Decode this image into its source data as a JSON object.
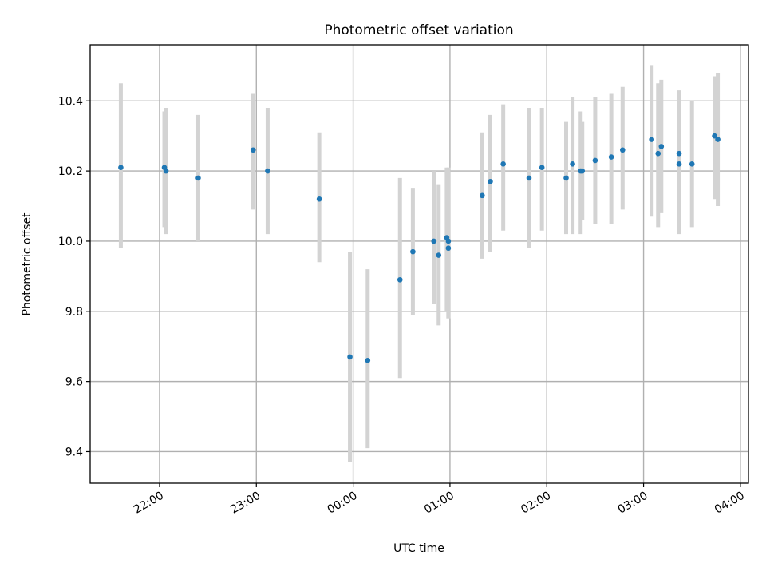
{
  "chart_data": {
    "type": "scatter",
    "title": "Photometric offset variation",
    "xlabel": "UTC time",
    "ylabel": "Photometric offset",
    "x_unit": "hours UTC (values past 24 are the following day)",
    "xlim": [
      "21:17",
      "04:05"
    ],
    "ylim": [
      9.31,
      10.56
    ],
    "x_ticks": [
      {
        "value": "22:00",
        "label": "22:00"
      },
      {
        "value": "23:00",
        "label": "23:00"
      },
      {
        "value": "00:00",
        "label": "00:00"
      },
      {
        "value": "01:00",
        "label": "01:00"
      },
      {
        "value": "02:00",
        "label": "02:00"
      },
      {
        "value": "03:00",
        "label": "03:00"
      },
      {
        "value": "04:00",
        "label": "04:00"
      }
    ],
    "y_ticks": [
      {
        "value": 9.4,
        "label": "9.4"
      },
      {
        "value": 9.6,
        "label": "9.6"
      },
      {
        "value": 9.8,
        "label": "9.8"
      },
      {
        "value": 10.0,
        "label": "10.0"
      },
      {
        "value": 10.2,
        "label": "10.2"
      },
      {
        "value": 10.4,
        "label": "10.4"
      }
    ],
    "grid": true,
    "marker_color": "#1f77b4",
    "errorbar_color": "#d3d3d3",
    "points": [
      {
        "t": "21:36",
        "y": 10.21,
        "lo": 9.98,
        "hi": 10.45
      },
      {
        "t": "22:03",
        "y": 10.21,
        "lo": 10.04,
        "hi": 10.37
      },
      {
        "t": "22:04",
        "y": 10.2,
        "lo": 10.02,
        "hi": 10.38
      },
      {
        "t": "22:24",
        "y": 10.18,
        "lo": 10.0,
        "hi": 10.36
      },
      {
        "t": "22:58",
        "y": 10.26,
        "lo": 10.09,
        "hi": 10.42
      },
      {
        "t": "23:07",
        "y": 10.2,
        "lo": 10.02,
        "hi": 10.38
      },
      {
        "t": "23:39",
        "y": 10.12,
        "lo": 9.94,
        "hi": 10.31
      },
      {
        "t": "23:58",
        "y": 9.67,
        "lo": 9.37,
        "hi": 9.97
      },
      {
        "t": "00:09",
        "y": 9.66,
        "lo": 9.41,
        "hi": 9.92
      },
      {
        "t": "00:29",
        "y": 9.89,
        "lo": 9.61,
        "hi": 10.18
      },
      {
        "t": "00:37",
        "y": 9.97,
        "lo": 9.79,
        "hi": 10.15
      },
      {
        "t": "00:50",
        "y": 10.0,
        "lo": 9.82,
        "hi": 10.2
      },
      {
        "t": "00:53",
        "y": 9.96,
        "lo": 9.76,
        "hi": 10.16
      },
      {
        "t": "00:58",
        "y": 10.01,
        "lo": 9.8,
        "hi": 10.21
      },
      {
        "t": "00:59",
        "y": 9.98,
        "lo": 9.78,
        "hi": 10.2
      },
      {
        "t": "00:59",
        "y": 10.0,
        "lo": 9.78,
        "hi": 10.21
      },
      {
        "t": "01:20",
        "y": 10.13,
        "lo": 9.95,
        "hi": 10.31
      },
      {
        "t": "01:25",
        "y": 10.17,
        "lo": 9.97,
        "hi": 10.36
      },
      {
        "t": "01:33",
        "y": 10.22,
        "lo": 10.03,
        "hi": 10.39
      },
      {
        "t": "01:49",
        "y": 10.18,
        "lo": 9.98,
        "hi": 10.38
      },
      {
        "t": "01:57",
        "y": 10.21,
        "lo": 10.03,
        "hi": 10.38
      },
      {
        "t": "02:12",
        "y": 10.18,
        "lo": 10.02,
        "hi": 10.34
      },
      {
        "t": "02:16",
        "y": 10.22,
        "lo": 10.02,
        "hi": 10.41
      },
      {
        "t": "02:21",
        "y": 10.2,
        "lo": 10.02,
        "hi": 10.37
      },
      {
        "t": "02:22",
        "y": 10.2,
        "lo": 10.06,
        "hi": 10.34
      },
      {
        "t": "02:30",
        "y": 10.23,
        "lo": 10.05,
        "hi": 10.41
      },
      {
        "t": "02:40",
        "y": 10.24,
        "lo": 10.05,
        "hi": 10.42
      },
      {
        "t": "02:47",
        "y": 10.26,
        "lo": 10.09,
        "hi": 10.44
      },
      {
        "t": "03:05",
        "y": 10.29,
        "lo": 10.07,
        "hi": 10.5
      },
      {
        "t": "03:09",
        "y": 10.25,
        "lo": 10.04,
        "hi": 10.45
      },
      {
        "t": "03:11",
        "y": 10.27,
        "lo": 10.08,
        "hi": 10.46
      },
      {
        "t": "03:22",
        "y": 10.22,
        "lo": 10.02,
        "hi": 10.43
      },
      {
        "t": "03:22",
        "y": 10.25,
        "lo": 10.08,
        "hi": 10.42
      },
      {
        "t": "03:30",
        "y": 10.22,
        "lo": 10.04,
        "hi": 10.4
      },
      {
        "t": "03:44",
        "y": 10.3,
        "lo": 10.12,
        "hi": 10.47
      },
      {
        "t": "03:46",
        "y": 10.29,
        "lo": 10.1,
        "hi": 10.48
      }
    ]
  }
}
